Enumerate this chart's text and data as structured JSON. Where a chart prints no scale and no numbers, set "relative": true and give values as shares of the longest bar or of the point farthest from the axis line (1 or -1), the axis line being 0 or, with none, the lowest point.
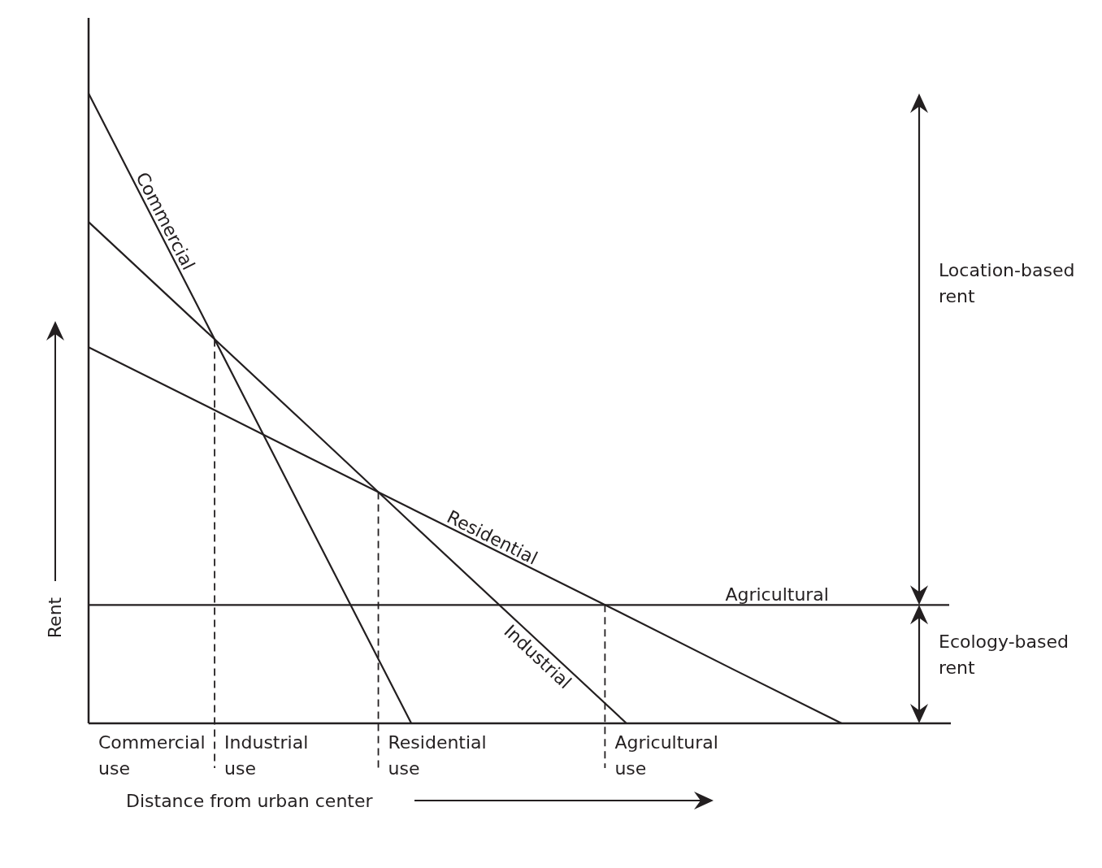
{
  "chart_data": {
    "type": "line",
    "relative": true,
    "xlabel": "Distance from urban center",
    "ylabel": "Rent",
    "categories": [
      null,
      null,
      null,
      null,
      null,
      null,
      null,
      null,
      null
    ],
    "tick_labels": false,
    "marker": "none",
    "line_style": "solid",
    "legend": false,
    "series": [
      {
        "name": "Commercial",
        "color": "#231f20",
        "values": [
          1,
          0.667,
          0.333,
          0,
          null,
          null,
          null,
          null,
          null
        ]
      },
      {
        "name": "Industrial",
        "color": "#231f20",
        "values": [
          0.796,
          0.637,
          0.478,
          0.318,
          0.159,
          0,
          null,
          null,
          null
        ]
      },
      {
        "name": "Residential",
        "color": "#231f20",
        "values": [
          0.597,
          0.512,
          0.426,
          0.341,
          0.256,
          0.171,
          0.085,
          0,
          null
        ]
      },
      {
        "name": "Agricultural",
        "color": "#231f20",
        "values": [
          0.188,
          0.188,
          0.188,
          0.188,
          0.188,
          0.188,
          0.188,
          0.188,
          0.188
        ]
      }
    ],
    "annotations": [
      "Commercial use",
      "Industrial use",
      "Residential use",
      "Agricultural use",
      "Location-based rent",
      "Ecology-based rent"
    ]
  }
}
